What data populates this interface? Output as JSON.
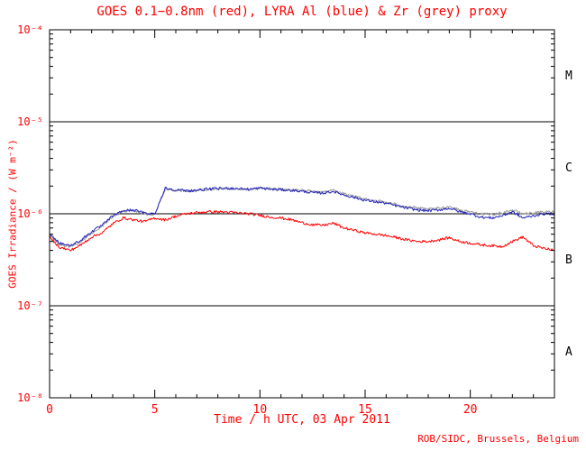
{
  "page": {
    "credit": "ROB/SIDC, Brussels, Belgium"
  },
  "chart_data": {
    "type": "line",
    "title": "GOES 0.1−0.8nm (red), LYRA Al (blue) & Zr (grey) proxy",
    "xlabel": "Time / h UTC, 03 Apr 2011",
    "ylabel": "GOES Irradiance / (W m⁻²)",
    "xlim": [
      0,
      24
    ],
    "ylim": [
      1e-08,
      0.0001
    ],
    "ylog_range": [
      -8,
      -4
    ],
    "x_major_ticks": [
      0,
      5,
      10,
      15,
      20
    ],
    "x_minor_step": 1,
    "y_ticks": [
      {
        "exp": -4,
        "label": "10⁻⁴"
      },
      {
        "exp": -5,
        "label": "10⁻⁵"
      },
      {
        "exp": -6,
        "label": "10⁻⁶"
      },
      {
        "exp": -7,
        "label": "10⁻⁷"
      },
      {
        "exp": -8,
        "label": "10⁻⁸"
      }
    ],
    "reference_lines_exp": [
      -5,
      -6,
      -7
    ],
    "flare_classes": [
      {
        "label": "M",
        "center_exp": -4.5
      },
      {
        "label": "C",
        "center_exp": -5.5
      },
      {
        "label": "B",
        "center_exp": -6.5
      },
      {
        "label": "A",
        "center_exp": -7.5
      }
    ],
    "colors": {
      "red": "#ff0000",
      "blue": "#2323bb",
      "grey": "#9a9a9a",
      "axis": "#000000",
      "labels": "#ff0000"
    },
    "grid": false,
    "legend_position": "in-title",
    "x": [
      0,
      0.5,
      1,
      1.5,
      2,
      2.5,
      3,
      3.5,
      4,
      4.5,
      5,
      5.5,
      6,
      6.5,
      7,
      7.5,
      8,
      8.5,
      9,
      9.5,
      10,
      10.5,
      11,
      11.5,
      12,
      12.5,
      13,
      13.5,
      14,
      14.5,
      15,
      15.5,
      16,
      16.5,
      17,
      17.5,
      18,
      18.5,
      19,
      19.5,
      20,
      20.5,
      21,
      21.5,
      22,
      22.5,
      23,
      23.5,
      24
    ],
    "series": [
      {
        "name": "LYRA Zr proxy",
        "color_key": "grey",
        "values": [
          5.8e-07,
          4.6e-07,
          4.4e-07,
          5e-07,
          6.2e-07,
          7.3e-07,
          9.3e-07,
          1.06e-06,
          1.08e-06,
          1e-06,
          9.8e-07,
          1.88e-06,
          1.8e-06,
          1.76e-06,
          1.78e-06,
          1.83e-06,
          1.86e-06,
          1.88e-06,
          1.86e-06,
          1.84e-06,
          1.92e-06,
          1.88e-06,
          1.85e-06,
          1.83e-06,
          1.8e-06,
          1.75e-06,
          1.72e-06,
          1.8e-06,
          1.65e-06,
          1.55e-06,
          1.45e-06,
          1.4e-06,
          1.33e-06,
          1.26e-06,
          1.2e-06,
          1.15e-06,
          1.12e-06,
          1.15e-06,
          1.2e-06,
          1.1e-06,
          1.05e-06,
          1e-06,
          9.8e-07,
          1.02e-06,
          1.1e-06,
          1e-06,
          1.02e-06,
          1.05e-06,
          1.05e-06
        ]
      },
      {
        "name": "LYRA Al proxy",
        "color_key": "blue",
        "values": [
          6e-07,
          4.8e-07,
          4.5e-07,
          5.2e-07,
          6.4e-07,
          7.5e-07,
          9.5e-07,
          1.08e-06,
          1.1e-06,
          1.02e-06,
          1e-06,
          1.9e-06,
          1.82e-06,
          1.78e-06,
          1.8e-06,
          1.85e-06,
          1.88e-06,
          1.9e-06,
          1.88e-06,
          1.85e-06,
          1.9e-06,
          1.85e-06,
          1.82e-06,
          1.8e-06,
          1.75e-06,
          1.7e-06,
          1.68e-06,
          1.75e-06,
          1.6e-06,
          1.5e-06,
          1.4e-06,
          1.35e-06,
          1.3e-06,
          1.22e-06,
          1.15e-06,
          1.1e-06,
          1.08e-06,
          1.1e-06,
          1.15e-06,
          1.05e-06,
          1e-06,
          9.2e-07,
          9e-07,
          9.5e-07,
          1.05e-06,
          9e-07,
          9.5e-07,
          1e-06,
          1e-06
        ]
      },
      {
        "name": "GOES 0.1−0.8nm",
        "color_key": "red",
        "values": [
          5.5e-07,
          4.3e-07,
          4e-07,
          4.6e-07,
          5.6e-07,
          6.2e-07,
          7.8e-07,
          9e-07,
          8.6e-07,
          8.2e-07,
          9e-07,
          8.6e-07,
          9.4e-07,
          1e-06,
          1.03e-06,
          1.05e-06,
          1.05e-06,
          1.04e-06,
          1.02e-06,
          1e-06,
          9.6e-07,
          9.2e-07,
          9e-07,
          8.6e-07,
          8e-07,
          7.6e-07,
          7.5e-07,
          7.9e-07,
          7e-07,
          6.6e-07,
          6.2e-07,
          6e-07,
          5.8e-07,
          5.5e-07,
          5.2e-07,
          5e-07,
          5e-07,
          5.2e-07,
          5.5e-07,
          5e-07,
          4.8e-07,
          4.6e-07,
          4.5e-07,
          4.4e-07,
          5e-07,
          5.6e-07,
          4.5e-07,
          4.2e-07,
          4e-07
        ]
      }
    ]
  }
}
